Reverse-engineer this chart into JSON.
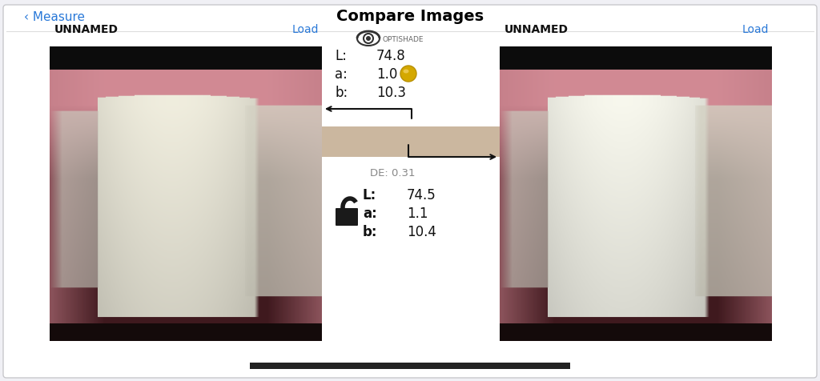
{
  "title": "Compare Images",
  "back_label": "‹ Measure",
  "back_color": "#2878d8",
  "title_color": "#000000",
  "title_fontsize": 14,
  "bg_color": "#f0f0f5",
  "panel_bg": "#ffffff",
  "border_color": "#c8c8cc",
  "left_label": "UNNAMED",
  "right_label": "UNNAMED",
  "load_color": "#2878d8",
  "load_text": "Load",
  "optishade_label": "OPTISHADE",
  "top_L_label": "L:",
  "top_L_value": "74.8",
  "top_a_label": "a:",
  "top_a_value": "1.0",
  "top_b_label": "b:",
  "top_b_value": "10.3",
  "de_label": "DE: 0.31",
  "bot_L_label": "L:",
  "bot_L_value": "74.5",
  "bot_a_label": "a:",
  "bot_a_value": "1.1",
  "bot_b_label": "b:",
  "bot_b_value": "10.4",
  "shade_band_color": "#c8b89a",
  "bottom_bar_color": "#222222"
}
